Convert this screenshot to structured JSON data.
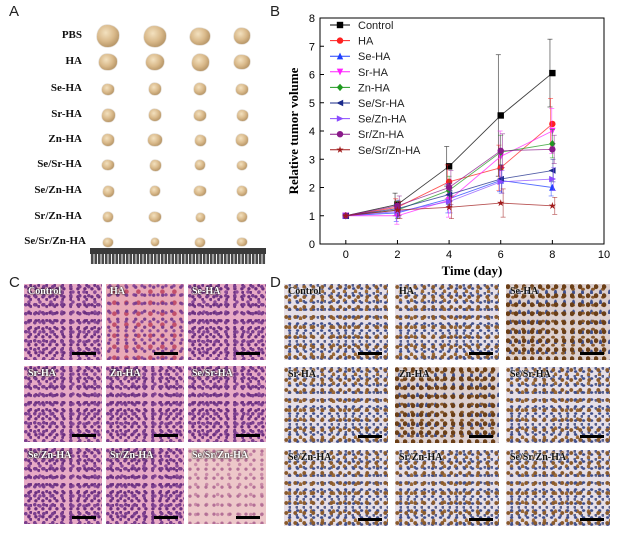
{
  "panels": {
    "a": {
      "letter": "A",
      "groups": [
        "PBS",
        "HA",
        "Se-HA",
        "Sr-HA",
        "Zn-HA",
        "Se/Sr-HA",
        "Se/Zn-HA",
        "Sr/Zn-HA",
        "Se/Sr/Zn-HA"
      ]
    },
    "b": {
      "letter": "B"
    },
    "c": {
      "letter": "C",
      "tiles": [
        "Control",
        "HA",
        "Se-HA",
        "Sr-HA",
        "Zn-HA",
        "Se/Sr-HA",
        "Se/Zn-HA",
        "Sr/Zn-HA",
        "Se/Sr/Zn-HA"
      ]
    },
    "d": {
      "letter": "D",
      "tiles": [
        "Control",
        "HA",
        "Se-HA",
        "Sr-HA",
        "Zn-HA",
        "Se/Sr-HA",
        "Se/Zn-HA",
        "Sr/Zn-HA",
        "Se/Sr/Zn-HA"
      ]
    }
  },
  "chart_data": {
    "type": "line",
    "xlabel": "Time (day)",
    "ylabel": "Relative tumor volume",
    "xlim": [
      -1,
      10
    ],
    "ylim": [
      0,
      8
    ],
    "xticks": [
      0,
      2,
      4,
      6,
      8,
      10
    ],
    "yticks": [
      0,
      1,
      2,
      3,
      4,
      5,
      6,
      7,
      8
    ],
    "grid": false,
    "legend_position": "top-left",
    "x": [
      0,
      2,
      4,
      6,
      8
    ],
    "series": [
      {
        "name": "Control",
        "color": "#000000",
        "marker": "square",
        "values": [
          1,
          1.4,
          2.75,
          4.55,
          6.05
        ],
        "err": [
          0,
          0.4,
          0.7,
          2.15,
          1.2
        ]
      },
      {
        "name": "HA",
        "color": "#ff2020",
        "marker": "circle",
        "values": [
          1,
          1.3,
          2.2,
          2.7,
          4.25
        ],
        "err": [
          0,
          0.3,
          0.6,
          0.8,
          0.9
        ]
      },
      {
        "name": "Se-HA",
        "color": "#2040ff",
        "marker": "triangle-up",
        "values": [
          1,
          1.1,
          1.6,
          2.25,
          2.0
        ],
        "err": [
          0,
          0.3,
          0.5,
          0.4,
          0.3
        ]
      },
      {
        "name": "Sr-HA",
        "color": "#ff20ff",
        "marker": "triangle-down",
        "values": [
          1,
          1.0,
          1.55,
          3.1,
          4.0
        ],
        "err": [
          0,
          0.3,
          0.6,
          0.9,
          0.8
        ]
      },
      {
        "name": "Zn-HA",
        "color": "#209a20",
        "marker": "diamond",
        "values": [
          1,
          1.2,
          1.9,
          3.25,
          3.55
        ],
        "err": [
          0,
          0.3,
          0.5,
          0.6,
          0.5
        ]
      },
      {
        "name": "Se/Sr-HA",
        "color": "#1a2a8a",
        "marker": "triangle-left",
        "values": [
          1,
          1.25,
          1.75,
          2.3,
          2.6
        ],
        "err": [
          0,
          0.3,
          0.4,
          0.5,
          0.4
        ]
      },
      {
        "name": "Se/Zn-HA",
        "color": "#8a4bff",
        "marker": "triangle-right",
        "values": [
          1,
          1.15,
          1.5,
          2.2,
          2.3
        ],
        "err": [
          0,
          0.2,
          0.4,
          0.4,
          0.4
        ]
      },
      {
        "name": "Sr/Zn-HA",
        "color": "#8a1a8a",
        "marker": "circle",
        "values": [
          1,
          1.35,
          2.0,
          3.3,
          3.35
        ],
        "err": [
          0,
          0.35,
          0.6,
          0.6,
          0.5
        ]
      },
      {
        "name": "Se/Sr/Zn-HA",
        "color": "#a01a1a",
        "marker": "star",
        "values": [
          1,
          1.2,
          1.3,
          1.45,
          1.35
        ],
        "err": [
          0,
          0.3,
          0.4,
          0.5,
          0.3
        ]
      }
    ]
  }
}
